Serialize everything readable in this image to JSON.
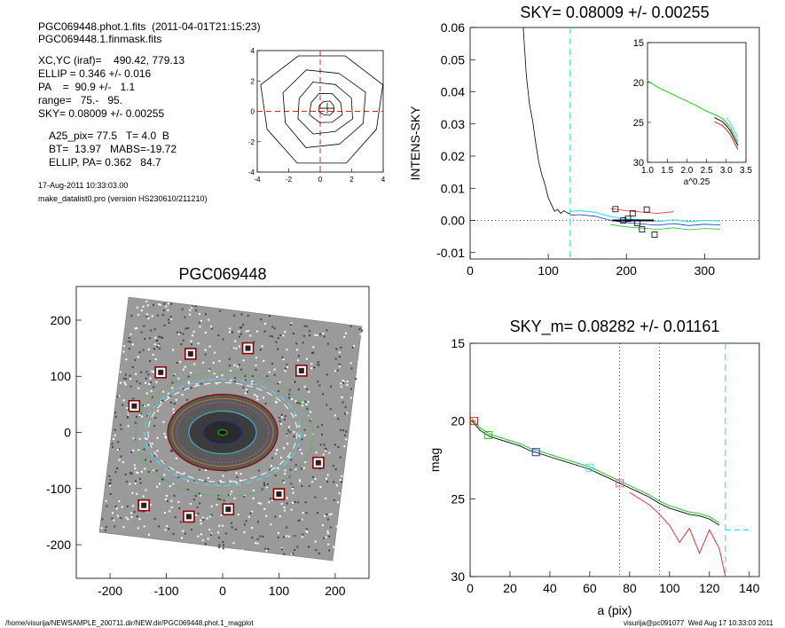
{
  "header": {
    "file_line": "PGC069448.phot.1.fits  (2011-04-01T21:15:23)",
    "mask_line": "PGC069448.1.finmask.fits",
    "center_line": "XC,YC (iraf)=    490.42, 779.13",
    "ellip_line": "ELLIP = 0.346 +/- 0.016",
    "pa_line": "PA    =  90.9 +/-   1.1",
    "range_line": "range=   75.-   95.",
    "sky_line": "SKY= 0.08009 +/- 0.00255",
    "a25_line": "A25_pix= 77.5   T= 4.0  B",
    "bt_line": "BT=  13.97   MABS=-19.72",
    "ellip_pa_line": "ELLIP, PA= 0.362   84.7",
    "date_line": "17-Aug-2011 10:33:03.00",
    "program_line": "make_datalist0.pro (version HS230610/211210)"
  },
  "footer": {
    "path": "/home/visurija/NEWSAMPLE_200711.dir/NEW.dir/PGC069448.phot.1_magplot",
    "user_time": "visurija@pc091077  Wed Aug 17 10:33:03 2011"
  },
  "colors": {
    "cyan": "#40e0f0",
    "green": "#22c822",
    "red": "#e02020",
    "blue": "#2030d0",
    "dark_red": "#8b0000"
  },
  "chart_data": [
    {
      "id": "contour",
      "type": "contour",
      "title": "",
      "xlim": [
        -4,
        4
      ],
      "ylim": [
        -4,
        4
      ],
      "xticks": [
        -4,
        -2,
        0,
        2,
        4
      ],
      "yticks": [
        -4,
        -2,
        0,
        2,
        4
      ],
      "contour_radii": [
        3.9,
        2.7,
        1.8,
        1.05,
        0.5
      ],
      "center": [
        0.45,
        0.2
      ]
    },
    {
      "id": "sky",
      "type": "line",
      "title": "SKY= 0.08009 +/- 0.00255",
      "xlabel": "",
      "ylabel": "INTENS-SKY",
      "xlim": [
        0,
        370
      ],
      "ylim": [
        -0.012,
        0.06
      ],
      "xticks": [
        0,
        100,
        200,
        300
      ],
      "yticks": [
        -0.01,
        0.0,
        0.01,
        0.02,
        0.03,
        0.04,
        0.05,
        0.06
      ],
      "ytick_labels": [
        "-0.01",
        "0.00",
        "0.01",
        "0.02",
        "0.03",
        "0.04",
        "0.05",
        "0.06"
      ],
      "vline": 128,
      "profile_x": [
        68,
        72,
        76,
        80,
        84,
        88,
        92,
        96,
        100,
        104,
        108,
        112,
        116,
        120,
        124,
        128
      ],
      "profile_y": [
        0.06,
        0.045,
        0.036,
        0.031,
        0.024,
        0.018,
        0.014,
        0.011,
        0.007,
        0.005,
        0.0028,
        0.0034,
        0.0022,
        0.003,
        0.0024,
        0.002
      ],
      "tail_x": [
        128,
        140,
        160,
        180,
        200,
        220,
        240,
        260,
        280,
        300,
        320
      ],
      "tail_y": [
        0.0028,
        0.003,
        0.0025,
        0.0012,
        0.0005,
        0.0001,
        -0.0003,
        0.0002,
        -0.0004,
        0.0,
        -0.0002
      ],
      "sky_points_x": [
        186,
        196,
        202,
        208,
        214,
        220,
        226,
        236
      ],
      "sky_points_y": [
        0.0035,
        0.0,
        0.0005,
        0.0022,
        -0.0008,
        -0.0028,
        0.0034,
        -0.0044
      ],
      "inset": {
        "xlabel": "a^0.25",
        "xlim": [
          1.0,
          3.5
        ],
        "ylim": [
          30,
          15
        ],
        "xticks": [
          1.0,
          1.5,
          2.0,
          2.5,
          3.0,
          3.5
        ],
        "xtick_labels": [
          "1.0",
          "1.5",
          "2.0",
          "2.5",
          "3.0",
          "3.5"
        ],
        "yticks": [
          15,
          20,
          25,
          30
        ],
        "curve_x": [
          1.0,
          1.3,
          1.6,
          1.9,
          2.2,
          2.5,
          2.7,
          2.9,
          3.0,
          3.1,
          3.2,
          3.3
        ],
        "curve_y": [
          19.8,
          20.7,
          21.4,
          22.1,
          22.8,
          23.6,
          24.0,
          24.5,
          25.0,
          25.6,
          26.6,
          27.5
        ]
      }
    },
    {
      "id": "image",
      "type": "image",
      "title": "PGC069448",
      "xlim": [
        -260,
        260
      ],
      "ylim": [
        -260,
        260
      ],
      "xticks": [
        -200,
        -100,
        0,
        100,
        200
      ],
      "yticks": [
        -200,
        -100,
        0,
        100,
        200
      ],
      "star_boxes_x": [
        -57,
        45,
        140,
        -110,
        -157,
        170,
        100,
        10,
        -60,
        -140
      ],
      "star_boxes_y": [
        140,
        150,
        110,
        107,
        47,
        -54,
        -110,
        -137,
        -150,
        -130
      ]
    },
    {
      "id": "magplot",
      "type": "line",
      "title": "SKY_m=  0.08282 +/- 0.01161",
      "xlabel": "a (pix)",
      "ylabel": "mag",
      "xlim": [
        0,
        145
      ],
      "ylim": [
        30,
        15
      ],
      "xticks": [
        0,
        20,
        40,
        60,
        80,
        100,
        120,
        140
      ],
      "yticks": [
        15,
        20,
        25,
        30
      ],
      "vlines_dotted": [
        75,
        95
      ],
      "vline_dashed": 128,
      "profile_a": [
        1,
        5,
        10,
        15,
        20,
        25,
        30,
        35,
        40,
        45,
        50,
        55,
        60,
        65,
        70,
        75,
        80,
        85,
        90,
        95,
        100,
        105,
        110,
        115,
        120,
        125
      ],
      "profile_mag": [
        20.0,
        20.6,
        21.0,
        21.2,
        21.4,
        21.6,
        21.9,
        22.1,
        22.3,
        22.5,
        22.7,
        22.9,
        23.1,
        23.4,
        23.7,
        24.0,
        24.3,
        24.6,
        24.9,
        25.3,
        25.6,
        25.8,
        26.0,
        26.1,
        26.3,
        26.7
      ],
      "red_a": [
        80,
        85,
        90,
        95,
        100,
        105,
        110,
        115,
        120,
        125,
        128
      ],
      "red_mag": [
        24.6,
        25.0,
        25.4,
        26.0,
        26.7,
        27.8,
        26.9,
        28.5,
        27.0,
        28.2,
        30.0
      ],
      "sky_a": [
        128,
        140
      ],
      "sky_mag": [
        27.0,
        27.0
      ],
      "boxes_a": [
        2,
        9,
        33,
        60,
        75
      ],
      "boxes_mag": [
        20.0,
        20.9,
        22.0,
        23.0,
        24.0
      ],
      "box_colors": [
        "#e02020",
        "#22c822",
        "#2030d0",
        "#40e0f0",
        "#e060c0"
      ]
    }
  ]
}
